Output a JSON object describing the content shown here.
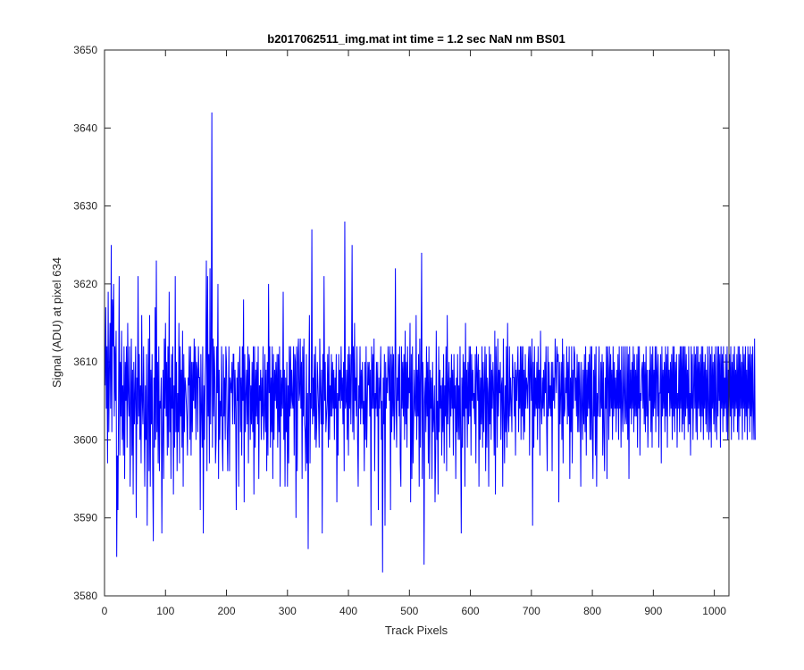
{
  "chart_data": {
    "type": "line",
    "title": "b2017062511_img.mat int time = 1.2 sec  NaN nm BS01",
    "xlabel": "Track Pixels",
    "ylabel": "Signal (ADU) at pixel 634",
    "xlim": [
      0,
      1024
    ],
    "ylim": [
      3580,
      3650
    ],
    "xticks": [
      0,
      100,
      200,
      300,
      400,
      500,
      600,
      700,
      800,
      900,
      1000
    ],
    "yticks": [
      3580,
      3590,
      3600,
      3610,
      3620,
      3630,
      3640,
      3650
    ],
    "xtick_labels": [
      "0",
      "100",
      "200",
      "300",
      "400",
      "500",
      "600",
      "700",
      "800",
      "900",
      "1000"
    ],
    "ytick_labels": [
      "3580",
      "3590",
      "3600",
      "3610",
      "3620",
      "3630",
      "3640",
      "3650"
    ],
    "grid": false,
    "box": true,
    "line_color": "#0000ff",
    "series": [
      {
        "x_start": 1,
        "x_step": 1,
        "values": [
          3607,
          3617,
          3604,
          3612,
          3597,
          3619,
          3601,
          3609,
          3615,
          3604,
          3625,
          3601,
          3618,
          3612,
          3620,
          3603,
          3612,
          3605,
          3614,
          3585,
          3598,
          3591,
          3605,
          3621,
          3598,
          3610,
          3603,
          3614,
          3600,
          3607,
          3598,
          3612,
          3595,
          3610,
          3605,
          3612,
          3599,
          3615,
          3606,
          3603,
          3612,
          3594,
          3604,
          3613,
          3598,
          3609,
          3593,
          3610,
          3602,
          3606,
          3612,
          3590,
          3608,
          3602,
          3621,
          3603,
          3611,
          3600,
          3607,
          3597,
          3616,
          3605,
          3602,
          3612,
          3603,
          3594,
          3607,
          3600,
          3611,
          3589,
          3604,
          3613,
          3596,
          3616,
          3594,
          3609,
          3602,
          3611,
          3596,
          3587,
          3608,
          3599,
          3617,
          3600,
          3623,
          3601,
          3610,
          3597,
          3612,
          3596,
          3605,
          3604,
          3608,
          3588,
          3601,
          3609,
          3595,
          3613,
          3604,
          3615,
          3603,
          3610,
          3598,
          3612,
          3599,
          3619,
          3601,
          3608,
          3595,
          3611,
          3604,
          3612,
          3593,
          3607,
          3599,
          3621,
          3601,
          3610,
          3596,
          3606,
          3601,
          3615,
          3597,
          3612,
          3603,
          3609,
          3599,
          3614,
          3594,
          3611,
          3601,
          3608,
          3607,
          3605,
          3603,
          3598,
          3608,
          3607,
          3612,
          3600,
          3612,
          3598,
          3610,
          3601,
          3610,
          3605,
          3613,
          3604,
          3612,
          3600,
          3610,
          3609,
          3601,
          3612,
          3608,
          3608,
          3591,
          3611,
          3604,
          3599,
          3612,
          3588,
          3607,
          3600,
          3608,
          3611,
          3623,
          3596,
          3621,
          3603,
          3611,
          3597,
          3622,
          3602,
          3612,
          3642,
          3599,
          3613,
          3603,
          3612,
          3608,
          3597,
          3600,
          3612,
          3606,
          3620,
          3595,
          3609,
          3600,
          3605,
          3603,
          3612,
          3600,
          3596,
          3611,
          3603,
          3608,
          3600,
          3612,
          3610,
          3602,
          3596,
          3604,
          3612,
          3596,
          3608,
          3607,
          3606,
          3610,
          3602,
          3611,
          3611,
          3602,
          3609,
          3604,
          3591,
          3608,
          3605,
          3610,
          3594,
          3609,
          3612,
          3601,
          3608,
          3598,
          3612,
          3605,
          3618,
          3592,
          3611,
          3601,
          3606,
          3609,
          3602,
          3612,
          3597,
          3611,
          3610,
          3600,
          3607,
          3602,
          3610,
          3601,
          3612,
          3593,
          3612,
          3599,
          3609,
          3603,
          3610,
          3602,
          3612,
          3595,
          3607,
          3605,
          3609,
          3600,
          3608,
          3603,
          3612,
          3600,
          3603,
          3611,
          3601,
          3609,
          3596,
          3610,
          3598,
          3620,
          3606,
          3612,
          3599,
          3608,
          3601,
          3612,
          3595,
          3611,
          3600,
          3609,
          3605,
          3610,
          3604,
          3611,
          3599,
          3611,
          3601,
          3612,
          3594,
          3609,
          3603,
          3608,
          3604,
          3619,
          3600,
          3609,
          3594,
          3608,
          3601,
          3610,
          3594,
          3607,
          3597,
          3612,
          3603,
          3612,
          3604,
          3609,
          3605,
          3604,
          3612,
          3598,
          3611,
          3610,
          3590,
          3612,
          3596,
          3611,
          3613,
          3605,
          3606,
          3613,
          3604,
          3610,
          3595,
          3612,
          3603,
          3613,
          3602,
          3601,
          3596,
          3611,
          3597,
          3606,
          3586,
          3607,
          3616,
          3597,
          3606,
          3604,
          3627,
          3602,
          3608,
          3603,
          3611,
          3600,
          3612,
          3599,
          3602,
          3610,
          3607,
          3604,
          3599,
          3613,
          3606,
          3602,
          3609,
          3588,
          3611,
          3602,
          3621,
          3605,
          3610,
          3601,
          3603,
          3605,
          3611,
          3599,
          3612,
          3600,
          3607,
          3603,
          3611,
          3603,
          3610,
          3604,
          3609,
          3600,
          3608,
          3604,
          3611,
          3592,
          3606,
          3598,
          3611,
          3605,
          3609,
          3604,
          3612,
          3605,
          3608,
          3602,
          3610,
          3596,
          3628,
          3604,
          3605,
          3609,
          3600,
          3611,
          3598,
          3612,
          3604,
          3611,
          3602,
          3609,
          3625,
          3601,
          3612,
          3600,
          3615,
          3605,
          3608,
          3603,
          3612,
          3600,
          3594,
          3607,
          3604,
          3612,
          3602,
          3609,
          3604,
          3610,
          3602,
          3605,
          3596,
          3610,
          3600,
          3612,
          3599,
          3605,
          3610,
          3607,
          3610,
          3603,
          3609,
          3589,
          3612,
          3604,
          3611,
          3604,
          3613,
          3596,
          3606,
          3604,
          3610,
          3603,
          3610,
          3591,
          3608,
          3604,
          3607,
          3612,
          3600,
          3605,
          3583,
          3608,
          3602,
          3611,
          3589,
          3610,
          3604,
          3608,
          3606,
          3612,
          3609,
          3605,
          3612,
          3591,
          3611,
          3601,
          3612,
          3603,
          3611,
          3600,
          3604,
          3622,
          3606,
          3599,
          3608,
          3605,
          3611,
          3603,
          3612,
          3597,
          3594,
          3612,
          3604,
          3610,
          3603,
          3611,
          3600,
          3614,
          3602,
          3610,
          3599,
          3612,
          3604,
          3608,
          3606,
          3615,
          3592,
          3611,
          3595,
          3612,
          3597,
          3603,
          3609,
          3604,
          3603,
          3616,
          3600,
          3609,
          3603,
          3611,
          3594,
          3613,
          3599,
          3609,
          3624,
          3595,
          3610,
          3606,
          3584,
          3605,
          3608,
          3601,
          3612,
          3603,
          3610,
          3597,
          3612,
          3595,
          3609,
          3604,
          3608,
          3595,
          3610,
          3601,
          3603,
          3607,
          3592,
          3598,
          3614,
          3600,
          3605,
          3593,
          3612,
          3601,
          3609,
          3604,
          3607,
          3598,
          3608,
          3601,
          3611,
          3597,
          3607,
          3603,
          3612,
          3596,
          3616,
          3602,
          3607,
          3610,
          3599,
          3608,
          3603,
          3611,
          3604,
          3609,
          3598,
          3611,
          3604,
          3607,
          3595,
          3608,
          3601,
          3611,
          3600,
          3607,
          3600,
          3612,
          3600,
          3588,
          3608,
          3599,
          3611,
          3603,
          3610,
          3594,
          3615,
          3604,
          3609,
          3599,
          3610,
          3602,
          3612,
          3603,
          3612,
          3598,
          3611,
          3605,
          3609,
          3604,
          3606,
          3602,
          3611,
          3597,
          3612,
          3609,
          3605,
          3611,
          3594,
          3609,
          3600,
          3608,
          3602,
          3612,
          3599,
          3610,
          3601,
          3607,
          3612,
          3596,
          3611,
          3599,
          3608,
          3606,
          3594,
          3612,
          3602,
          3611,
          3600,
          3609,
          3604,
          3610,
          3606,
          3598,
          3614,
          3593,
          3612,
          3608,
          3599,
          3613,
          3603,
          3609,
          3606,
          3610,
          3600,
          3607,
          3608,
          3594,
          3613,
          3604,
          3597,
          3607,
          3601,
          3612,
          3599,
          3615,
          3603,
          3601,
          3612,
          3603,
          3608,
          3605,
          3601,
          3611,
          3608,
          3608,
          3603,
          3610,
          3598,
          3609,
          3605,
          3609,
          3612,
          3601,
          3609,
          3604,
          3612,
          3600,
          3612,
          3603,
          3612,
          3600,
          3609,
          3601,
          3611,
          3604,
          3608,
          3607,
          3604,
          3610,
          3612,
          3598,
          3612,
          3609,
          3605,
          3613,
          3589,
          3610,
          3599,
          3612,
          3603,
          3608,
          3604,
          3610,
          3600,
          3612,
          3604,
          3609,
          3598,
          3614,
          3605,
          3602,
          3608,
          3604,
          3609,
          3603,
          3610,
          3606,
          3612,
          3602,
          3596,
          3612,
          3603,
          3610,
          3604,
          3607,
          3603,
          3610,
          3596,
          3610,
          3605,
          3608,
          3604,
          3613,
          3609,
          3606,
          3612,
          3610,
          3611,
          3592,
          3610,
          3602,
          3606,
          3610,
          3600,
          3613,
          3597,
          3611,
          3603,
          3604,
          3608,
          3606,
          3612,
          3602,
          3610,
          3603,
          3612,
          3595,
          3608,
          3601,
          3612,
          3597,
          3609,
          3604,
          3612,
          3611,
          3605,
          3608,
          3603,
          3611,
          3601,
          3610,
          3601,
          3610,
          3606,
          3594,
          3610,
          3605,
          3600,
          3609,
          3602,
          3611,
          3601,
          3612,
          3598,
          3609,
          3603,
          3610,
          3604,
          3611,
          3600,
          3612,
          3600,
          3612,
          3601,
          3595,
          3609,
          3603,
          3611,
          3598,
          3612,
          3594,
          3606,
          3603,
          3607,
          3612,
          3603,
          3603,
          3610,
          3604,
          3611,
          3598,
          3610,
          3601,
          3596,
          3608,
          3604,
          3612,
          3595,
          3612,
          3609,
          3600,
          3612,
          3603,
          3611,
          3604,
          3609,
          3600,
          3612,
          3603,
          3610,
          3604,
          3608,
          3601,
          3609,
          3604,
          3611,
          3600,
          3612,
          3604,
          3609,
          3599,
          3612,
          3604,
          3601,
          3612,
          3606,
          3602,
          3612,
          3603,
          3602,
          3612,
          3600,
          3611,
          3595,
          3612,
          3604,
          3609,
          3602,
          3610,
          3604,
          3612,
          3601,
          3611,
          3603,
          3609,
          3603,
          3611,
          3599,
          3612,
          3604,
          3612,
          3598,
          3606,
          3605,
          3609,
          3610,
          3604,
          3611,
          3602,
          3610,
          3601,
          3612,
          3603,
          3609,
          3599,
          3604,
          3609,
          3605,
          3612,
          3601,
          3611,
          3599,
          3612,
          3603,
          3609,
          3604,
          3612,
          3601,
          3612,
          3609,
          3603,
          3611,
          3599,
          3606,
          3606,
          3611,
          3597,
          3612,
          3603,
          3609,
          3604,
          3610,
          3601,
          3612,
          3603,
          3611,
          3599,
          3612,
          3606,
          3609,
          3603,
          3610,
          3604,
          3611,
          3600,
          3612,
          3603,
          3612,
          3601,
          3610,
          3604,
          3611,
          3599,
          3606,
          3604,
          3611,
          3601,
          3612,
          3604,
          3612,
          3601,
          3612,
          3602,
          3612,
          3600,
          3612,
          3603,
          3611,
          3604,
          3609,
          3601,
          3612,
          3602,
          3606,
          3598,
          3612,
          3604,
          3611,
          3600,
          3606,
          3612,
          3604,
          3611,
          3601,
          3612,
          3600,
          3612,
          3604,
          3610,
          3603,
          3611,
          3601,
          3612,
          3603,
          3612,
          3600,
          3610,
          3604,
          3611,
          3602,
          3609,
          3601,
          3612,
          3604,
          3600,
          3612,
          3601,
          3611,
          3599,
          3612,
          3604,
          3610,
          3602,
          3611,
          3601,
          3612,
          3604,
          3600,
          3612,
          3603,
          3612,
          3605,
          3611,
          3599,
          3612,
          3604,
          3611,
          3601,
          3612,
          3603,
          3608,
          3604,
          3611,
          3601,
          3612,
          3600,
          3609,
          3604,
          3611,
          3603,
          3612,
          3600,
          3610,
          3604,
          3611,
          3601,
          3612,
          3603,
          3609,
          3604,
          3611,
          3601,
          3612,
          3600,
          3612,
          3603,
          3611,
          3604,
          3610,
          3600,
          3612,
          3604,
          3611,
          3601,
          3612,
          3603,
          3609,
          3600,
          3612,
          3604,
          3611,
          3601,
          3612,
          3603,
          3611,
          3600,
          3612,
          3604,
          3600,
          3613,
          3600
        ]
      }
    ]
  }
}
